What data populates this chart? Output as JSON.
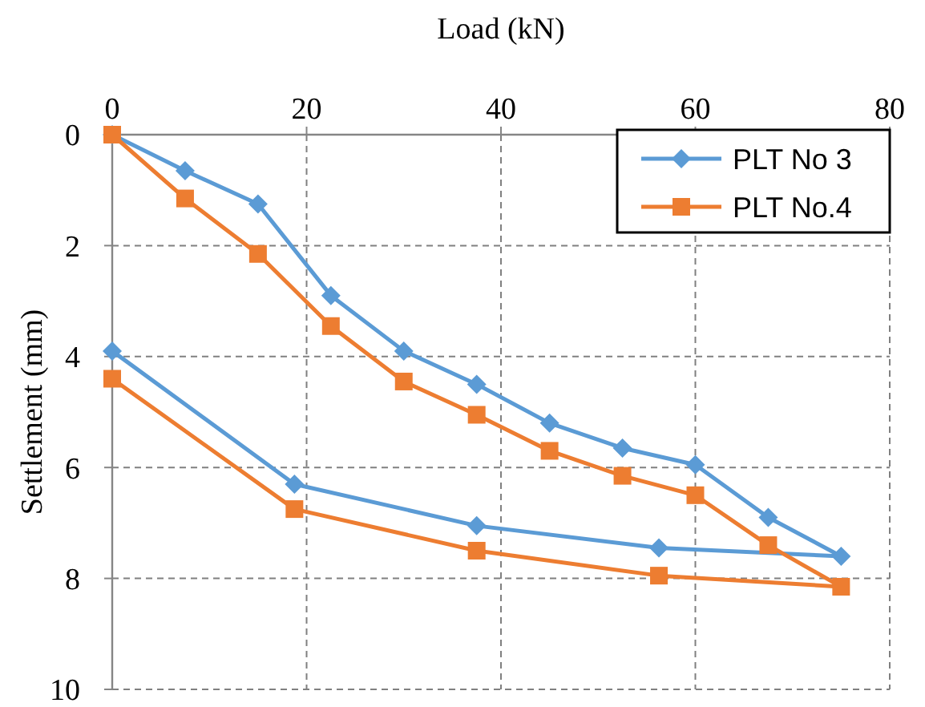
{
  "chart_data": {
    "type": "line",
    "xlabel": "Load  (kN)",
    "ylabel": "Settlement  (mm)",
    "xlim": [
      0,
      80
    ],
    "xticks": [
      0,
      20,
      40,
      60,
      80
    ],
    "ylim": [
      10,
      0
    ],
    "yticks": [
      0,
      2,
      4,
      6,
      8,
      10
    ],
    "grid": true,
    "legend": "top right",
    "line_style": "solid",
    "x": [
      0,
      7.5,
      15,
      22.5,
      30,
      37.5,
      45,
      52.5,
      60,
      67.5,
      75,
      56.25,
      37.5,
      18.75,
      0
    ],
    "series": [
      {
        "name": "PLT No 3",
        "color": "#5b9bd5",
        "marker": "diamond",
        "values": [
          0,
          0.65,
          1.25,
          2.9,
          3.9,
          4.5,
          5.2,
          5.65,
          5.95,
          6.9,
          7.6,
          7.45,
          7.05,
          6.3,
          3.9
        ]
      },
      {
        "name": "PLT No.4",
        "color": "#ed7d31",
        "marker": "square",
        "values": [
          0,
          1.15,
          2.15,
          3.45,
          4.45,
          5.05,
          5.7,
          6.15,
          6.5,
          7.4,
          8.15,
          7.95,
          7.5,
          6.75,
          4.4
        ]
      }
    ]
  }
}
